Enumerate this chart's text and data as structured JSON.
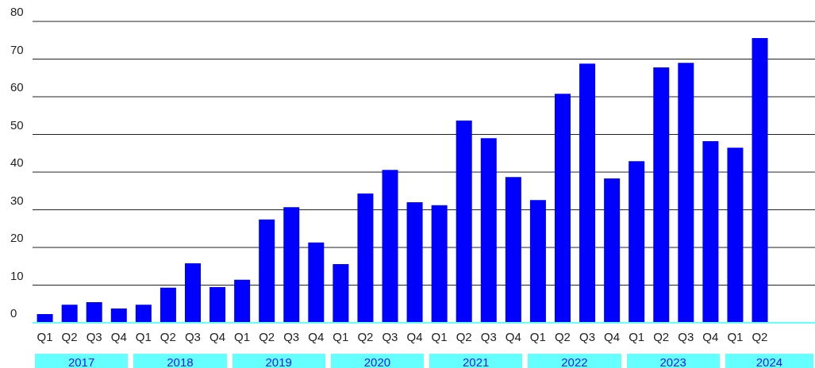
{
  "chart_data": {
    "type": "bar",
    "categories": [
      "Q1",
      "Q2",
      "Q3",
      "Q4",
      "Q1",
      "Q2",
      "Q3",
      "Q4",
      "Q1",
      "Q2",
      "Q3",
      "Q4",
      "Q1",
      "Q2",
      "Q3",
      "Q4",
      "Q1",
      "Q2",
      "Q3",
      "Q4",
      "Q1",
      "Q2",
      "Q3",
      "Q4",
      "Q1",
      "Q2",
      "Q3",
      "Q4",
      "Q1",
      "Q2"
    ],
    "values": [
      2.3,
      4.8,
      5.5,
      3.8,
      4.8,
      9.3,
      15.8,
      9.5,
      11.4,
      27.4,
      30.7,
      21.3,
      15.6,
      34.3,
      40.6,
      32,
      31.2,
      53.7,
      49,
      38.7,
      32.6,
      60.8,
      68.8,
      38.3,
      42.9,
      67.8,
      69,
      48.2,
      46.5,
      75.6
    ],
    "color": "#0000ff",
    "ylim": [
      0,
      80
    ],
    "yticks": [
      0,
      10,
      20,
      30,
      40,
      50,
      60,
      70,
      80
    ],
    "grid": "y",
    "annotations": [
      "2017",
      "2018",
      "2019",
      "2020",
      "2021",
      "2022",
      "2023",
      "2024"
    ]
  }
}
